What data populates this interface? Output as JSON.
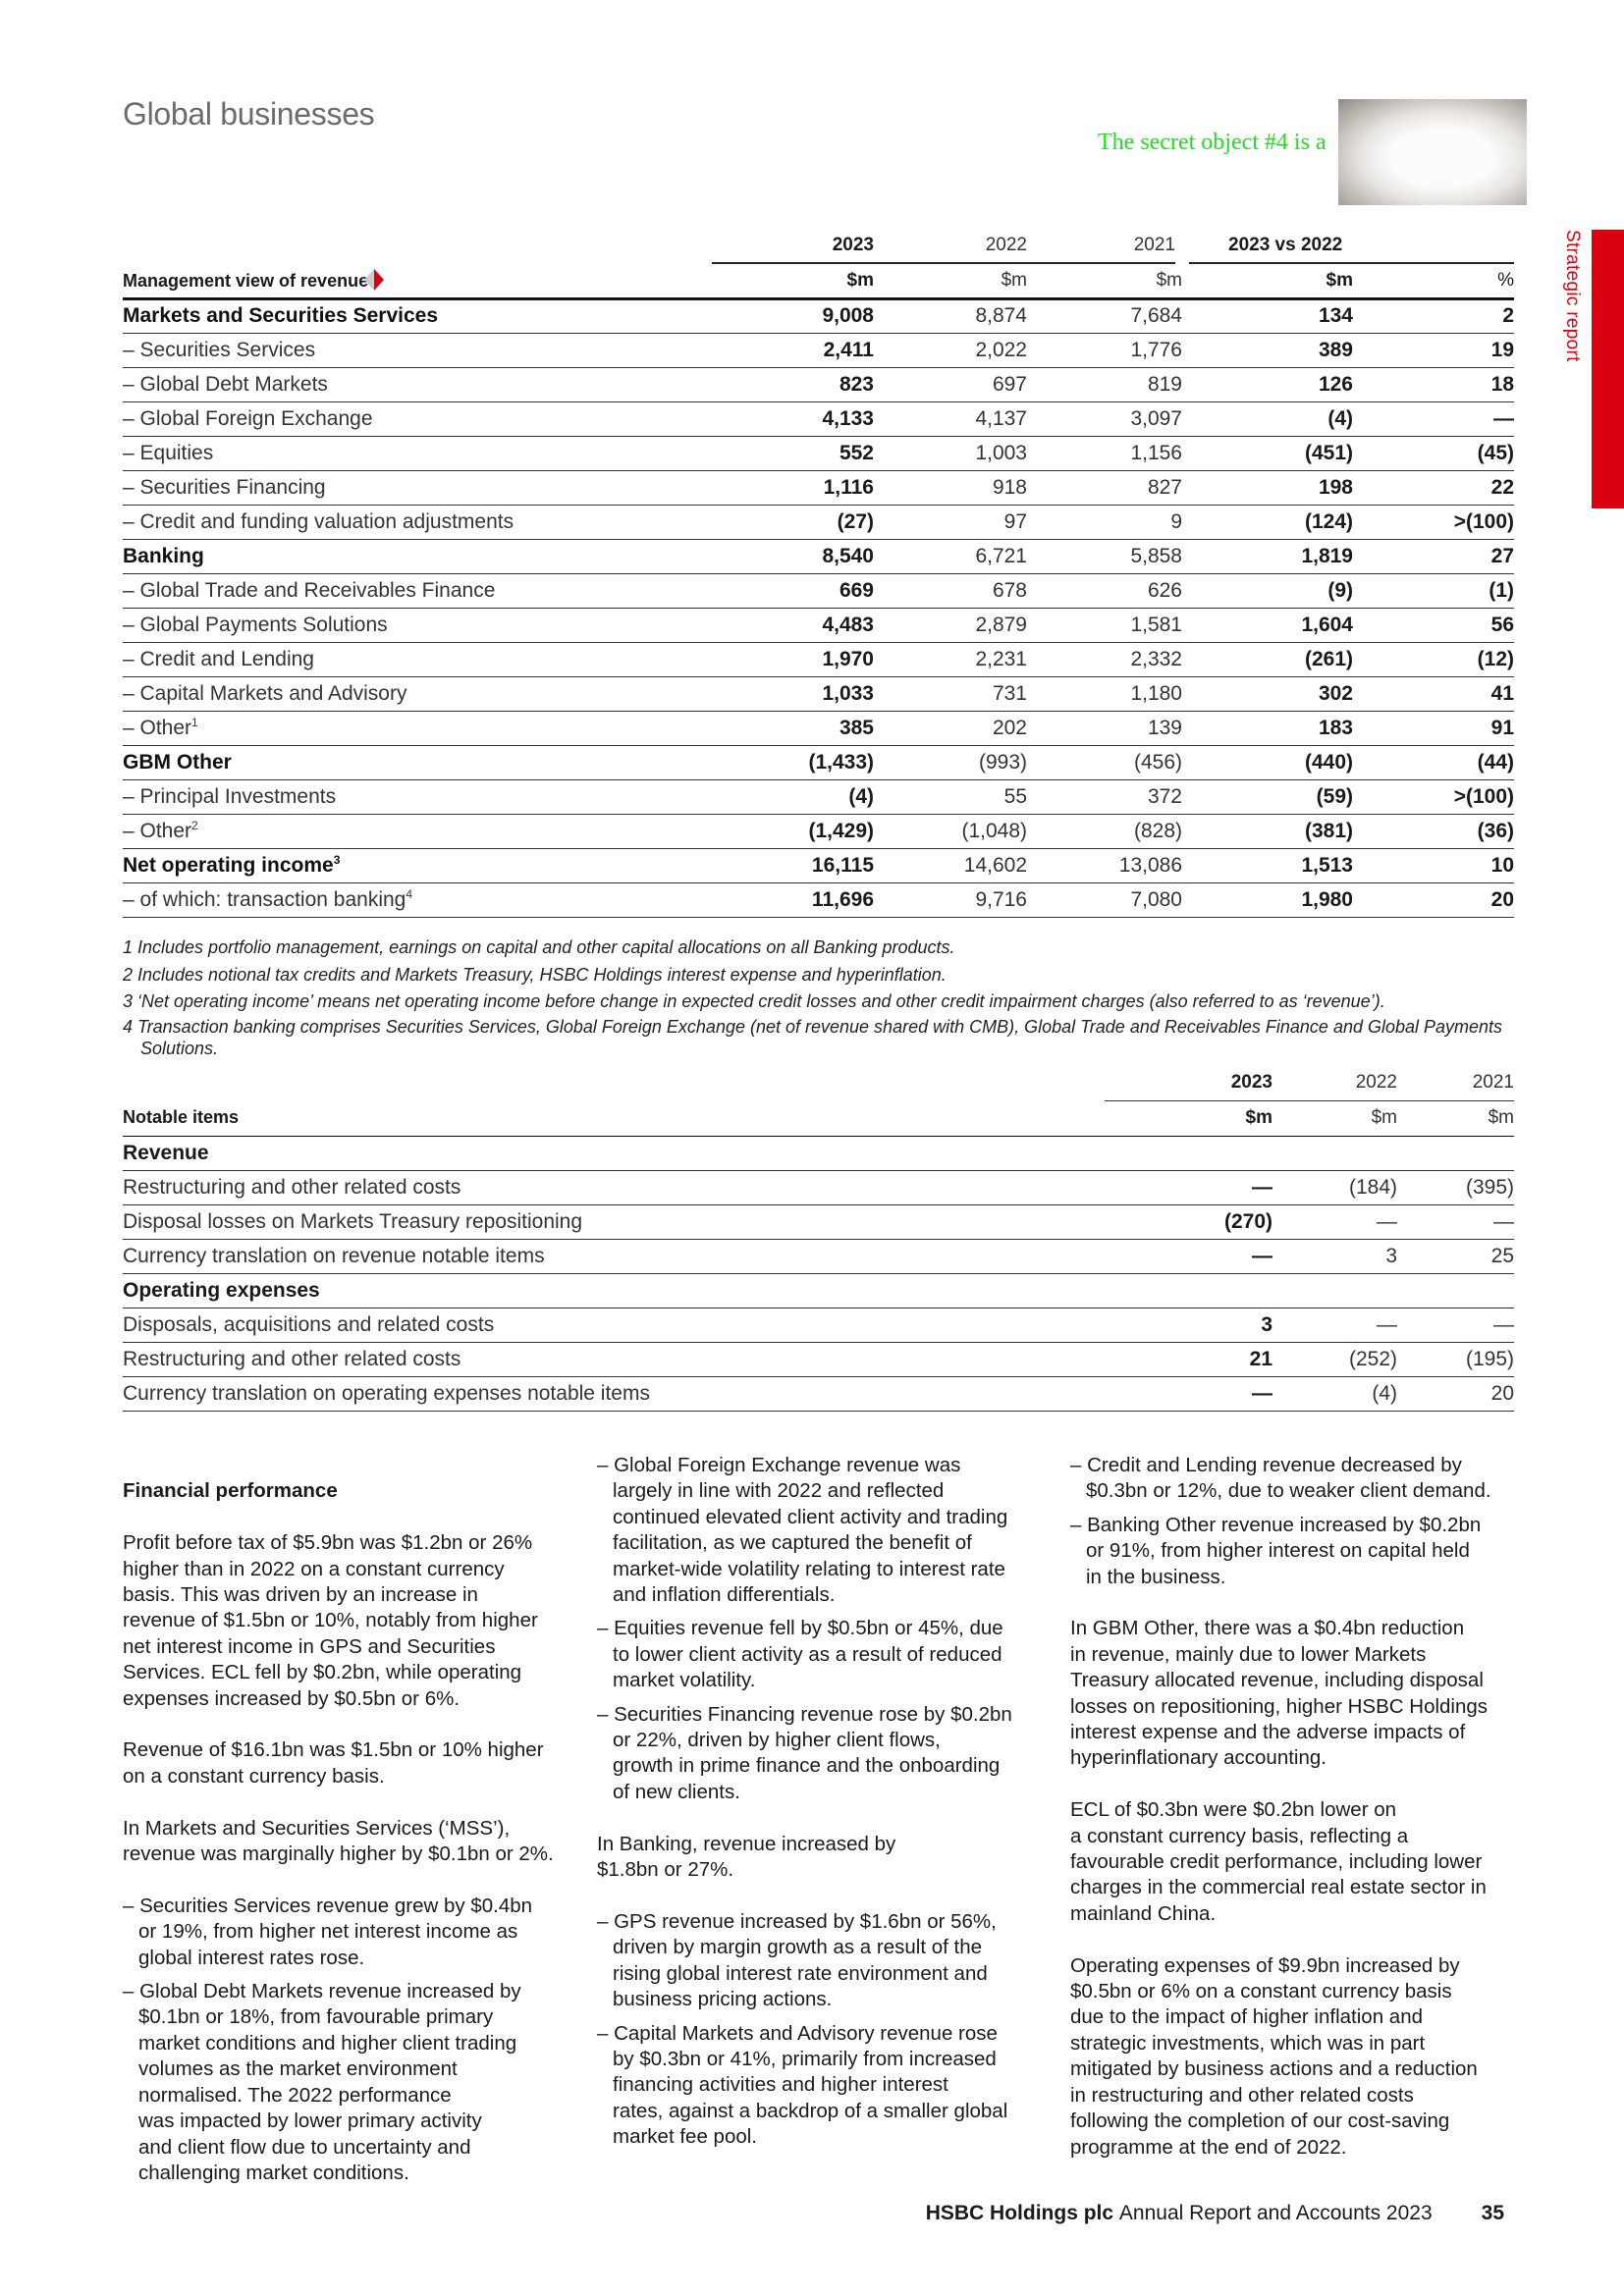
{
  "page": {
    "title": "Global businesses",
    "side_label": "Strategic report",
    "secret_caption": "The secret object #4 is a",
    "colors": {
      "accent": "#db0011"
    }
  },
  "revenue_table": {
    "header_label": "Management view of revenue",
    "years": [
      "2023",
      "2022",
      "2021"
    ],
    "compare": "2023 vs 2022",
    "units": [
      "$m",
      "$m",
      "$m",
      "$m",
      "%"
    ],
    "rows": [
      {
        "label": "Markets and Securities Services",
        "v": [
          "9,008",
          "8,874",
          "7,684",
          "134",
          "2"
        ],
        "bold": true
      },
      {
        "label": "– Securities Services",
        "v": [
          "2,411",
          "2,022",
          "1,776",
          "389",
          "19"
        ]
      },
      {
        "label": "– Global Debt Markets",
        "v": [
          "823",
          "697",
          "819",
          "126",
          "18"
        ]
      },
      {
        "label": "– Global Foreign Exchange",
        "v": [
          "4,133",
          "4,137",
          "3,097",
          "(4)",
          "—"
        ]
      },
      {
        "label": "– Equities",
        "v": [
          "552",
          "1,003",
          "1,156",
          "(451)",
          "(45)"
        ]
      },
      {
        "label": "– Securities Financing",
        "v": [
          "1,116",
          "918",
          "827",
          "198",
          "22"
        ]
      },
      {
        "label": "– Credit and funding valuation adjustments",
        "v": [
          "(27)",
          "97",
          "9",
          "(124)",
          ">(100)"
        ]
      },
      {
        "label": "Banking",
        "v": [
          "8,540",
          "6,721",
          "5,858",
          "1,819",
          "27"
        ],
        "bold": true
      },
      {
        "label": "– Global Trade and Receivables Finance",
        "v": [
          "669",
          "678",
          "626",
          "(9)",
          "(1)"
        ]
      },
      {
        "label": "– Global Payments Solutions",
        "v": [
          "4,483",
          "2,879",
          "1,581",
          "1,604",
          "56"
        ]
      },
      {
        "label": "– Credit and Lending",
        "v": [
          "1,970",
          "2,231",
          "2,332",
          "(261)",
          "(12)"
        ]
      },
      {
        "label": "– Capital Markets and Advisory",
        "v": [
          "1,033",
          "731",
          "1,180",
          "302",
          "41"
        ]
      },
      {
        "label": "– Other",
        "sup": "1",
        "v": [
          "385",
          "202",
          "139",
          "183",
          "91"
        ]
      },
      {
        "label": "GBM Other",
        "v": [
          "(1,433)",
          "(993)",
          "(456)",
          "(440)",
          "(44)"
        ],
        "bold": true
      },
      {
        "label": "– Principal Investments",
        "v": [
          "(4)",
          "55",
          "372",
          "(59)",
          ">(100)"
        ]
      },
      {
        "label": "– Other",
        "sup": "2",
        "v": [
          "(1,429)",
          "(1,048)",
          "(828)",
          "(381)",
          "(36)"
        ]
      },
      {
        "label": "Net operating income",
        "sup": "3",
        "v": [
          "16,115",
          "14,602",
          "13,086",
          "1,513",
          "10"
        ],
        "bold": true
      },
      {
        "label": "– of which: transaction banking",
        "sup": "4",
        "v": [
          "11,696",
          "9,716",
          "7,080",
          "1,980",
          "20"
        ]
      }
    ]
  },
  "footnotes": [
    "1 Includes portfolio management, earnings on capital and other capital allocations on all Banking products.",
    "2 Includes notional tax credits and Markets Treasury, HSBC Holdings interest expense and hyperinflation.",
    "3 ‘Net operating income’ means net operating income before change in expected credit losses and other credit impairment charges (also referred to as ‘revenue’).",
    "4 Transaction banking comprises Securities Services, Global Foreign Exchange (net of revenue shared with CMB), Global Trade and Receivables Finance and Global Payments Solutions."
  ],
  "notable_table": {
    "header_label": "Notable items",
    "years": [
      "2023",
      "2022",
      "2021"
    ],
    "units": [
      "$m",
      "$m",
      "$m"
    ],
    "rows": [
      {
        "label": "Revenue",
        "section": true
      },
      {
        "label": "Restructuring and other related costs",
        "v": [
          "—",
          "(184)",
          "(395)"
        ]
      },
      {
        "label": "Disposal losses on Markets Treasury repositioning",
        "v": [
          "(270)",
          "—",
          "—"
        ]
      },
      {
        "label": "Currency translation on revenue notable items",
        "v": [
          "—",
          "3",
          "25"
        ]
      },
      {
        "label": "Operating expenses",
        "section": true
      },
      {
        "label": "Disposals, acquisitions and related costs",
        "v": [
          "3",
          "—",
          "—"
        ]
      },
      {
        "label": "Restructuring and other related costs",
        "v": [
          "21",
          "(252)",
          "(195)"
        ]
      },
      {
        "label": "Currency translation on operating expenses notable items",
        "v": [
          "—",
          "(4)",
          "20"
        ]
      }
    ]
  },
  "body": {
    "heading": "Financial performance",
    "c1": [
      {
        "t": "Profit before tax of $5.9bn was $1.2bn or 26%\nhigher than in 2022 on a constant currency\nbasis. This was driven by an increase in\nrevenue of $1.5bn or 10%, notably from higher\nnet interest income in GPS and Securities\nServices. ECL fell by $0.2bn, while operating\nexpenses increased by $0.5bn or 6%."
      },
      {
        "t": "Revenue of $16.1bn was $1.5bn or 10% higher\non a constant currency basis."
      },
      {
        "t": "In Markets and Securities Services (‘MSS’),\nrevenue was marginally higher by $0.1bn or 2%."
      },
      {
        "t": "– Securities Services revenue grew by $0.4bn\nor 19%, from higher net interest income as\nglobal interest rates rose.",
        "bul": true
      },
      {
        "t": "– Global Debt Markets revenue increased by\n$0.1bn or 18%, from favourable primary\nmarket conditions and higher client trading\nvolumes as the market environment\nnormalised. The 2022 performance\nwas impacted by lower primary activity\nand client flow due to uncertainty and\nchallenging market conditions.",
        "bul": true
      }
    ],
    "c2": [
      {
        "t": "– Global Foreign Exchange revenue was\nlargely in line with 2022 and reflected\ncontinued elevated client activity and trading\nfacilitation, as we captured the benefit of\nmarket-wide volatility relating to interest rate\nand inflation differentials.",
        "bul": true
      },
      {
        "t": "– Equities revenue fell by $0.5bn or 45%, due\nto lower client activity as a result of reduced\nmarket volatility.",
        "bul": true
      },
      {
        "t": "– Securities Financing revenue rose by $0.2bn\nor 22%, driven by higher client flows,\ngrowth in prime finance and the onboarding\nof new clients.",
        "bul": true,
        "last": true
      },
      {
        "t": "In Banking, revenue increased by\n$1.8bn or 27%."
      },
      {
        "t": "– GPS revenue increased by $1.6bn or 56%,\ndriven by margin growth as a result of the\nrising global interest rate environment and\nbusiness pricing actions.",
        "bul": true
      },
      {
        "t": "– Capital Markets and Advisory revenue rose\nby $0.3bn or 41%, primarily from increased\nfinancing activities and higher interest\nrates, against a backdrop of a smaller global\nmarket fee pool.",
        "bul": true
      }
    ],
    "c3": [
      {
        "t": "– Credit and Lending revenue decreased by\n$0.3bn or 12%, due to weaker client demand.",
        "bul": true
      },
      {
        "t": "– Banking Other revenue increased by $0.2bn\nor 91%, from higher interest on capital held\nin the business.",
        "bul": true,
        "last": true
      },
      {
        "t": "In GBM Other, there was a $0.4bn reduction\nin revenue, mainly due to lower Markets\nTreasury allocated revenue, including disposal\nlosses on repositioning, higher HSBC Holdings\ninterest expense and the adverse impacts of\nhyperinflationary accounting."
      },
      {
        "t": "ECL of $0.3bn were $0.2bn lower on\na constant currency basis, reflecting a\nfavourable credit performance, including lower\ncharges in the commercial real estate sector in\nmainland China."
      },
      {
        "t": "Operating expenses of $9.9bn increased by\n$0.5bn or 6% on a constant currency basis\ndue to the impact of higher inflation and\nstrategic investments, which was in part\nmitigated by business actions and a reduction\nin restructuring and other related costs\nfollowing the completion of our cost-saving\nprogramme at the end of 2022."
      }
    ]
  },
  "footer": {
    "company": "HSBC Holdings plc",
    "report": "Annual Report and Accounts 2023",
    "page_number": "35"
  }
}
